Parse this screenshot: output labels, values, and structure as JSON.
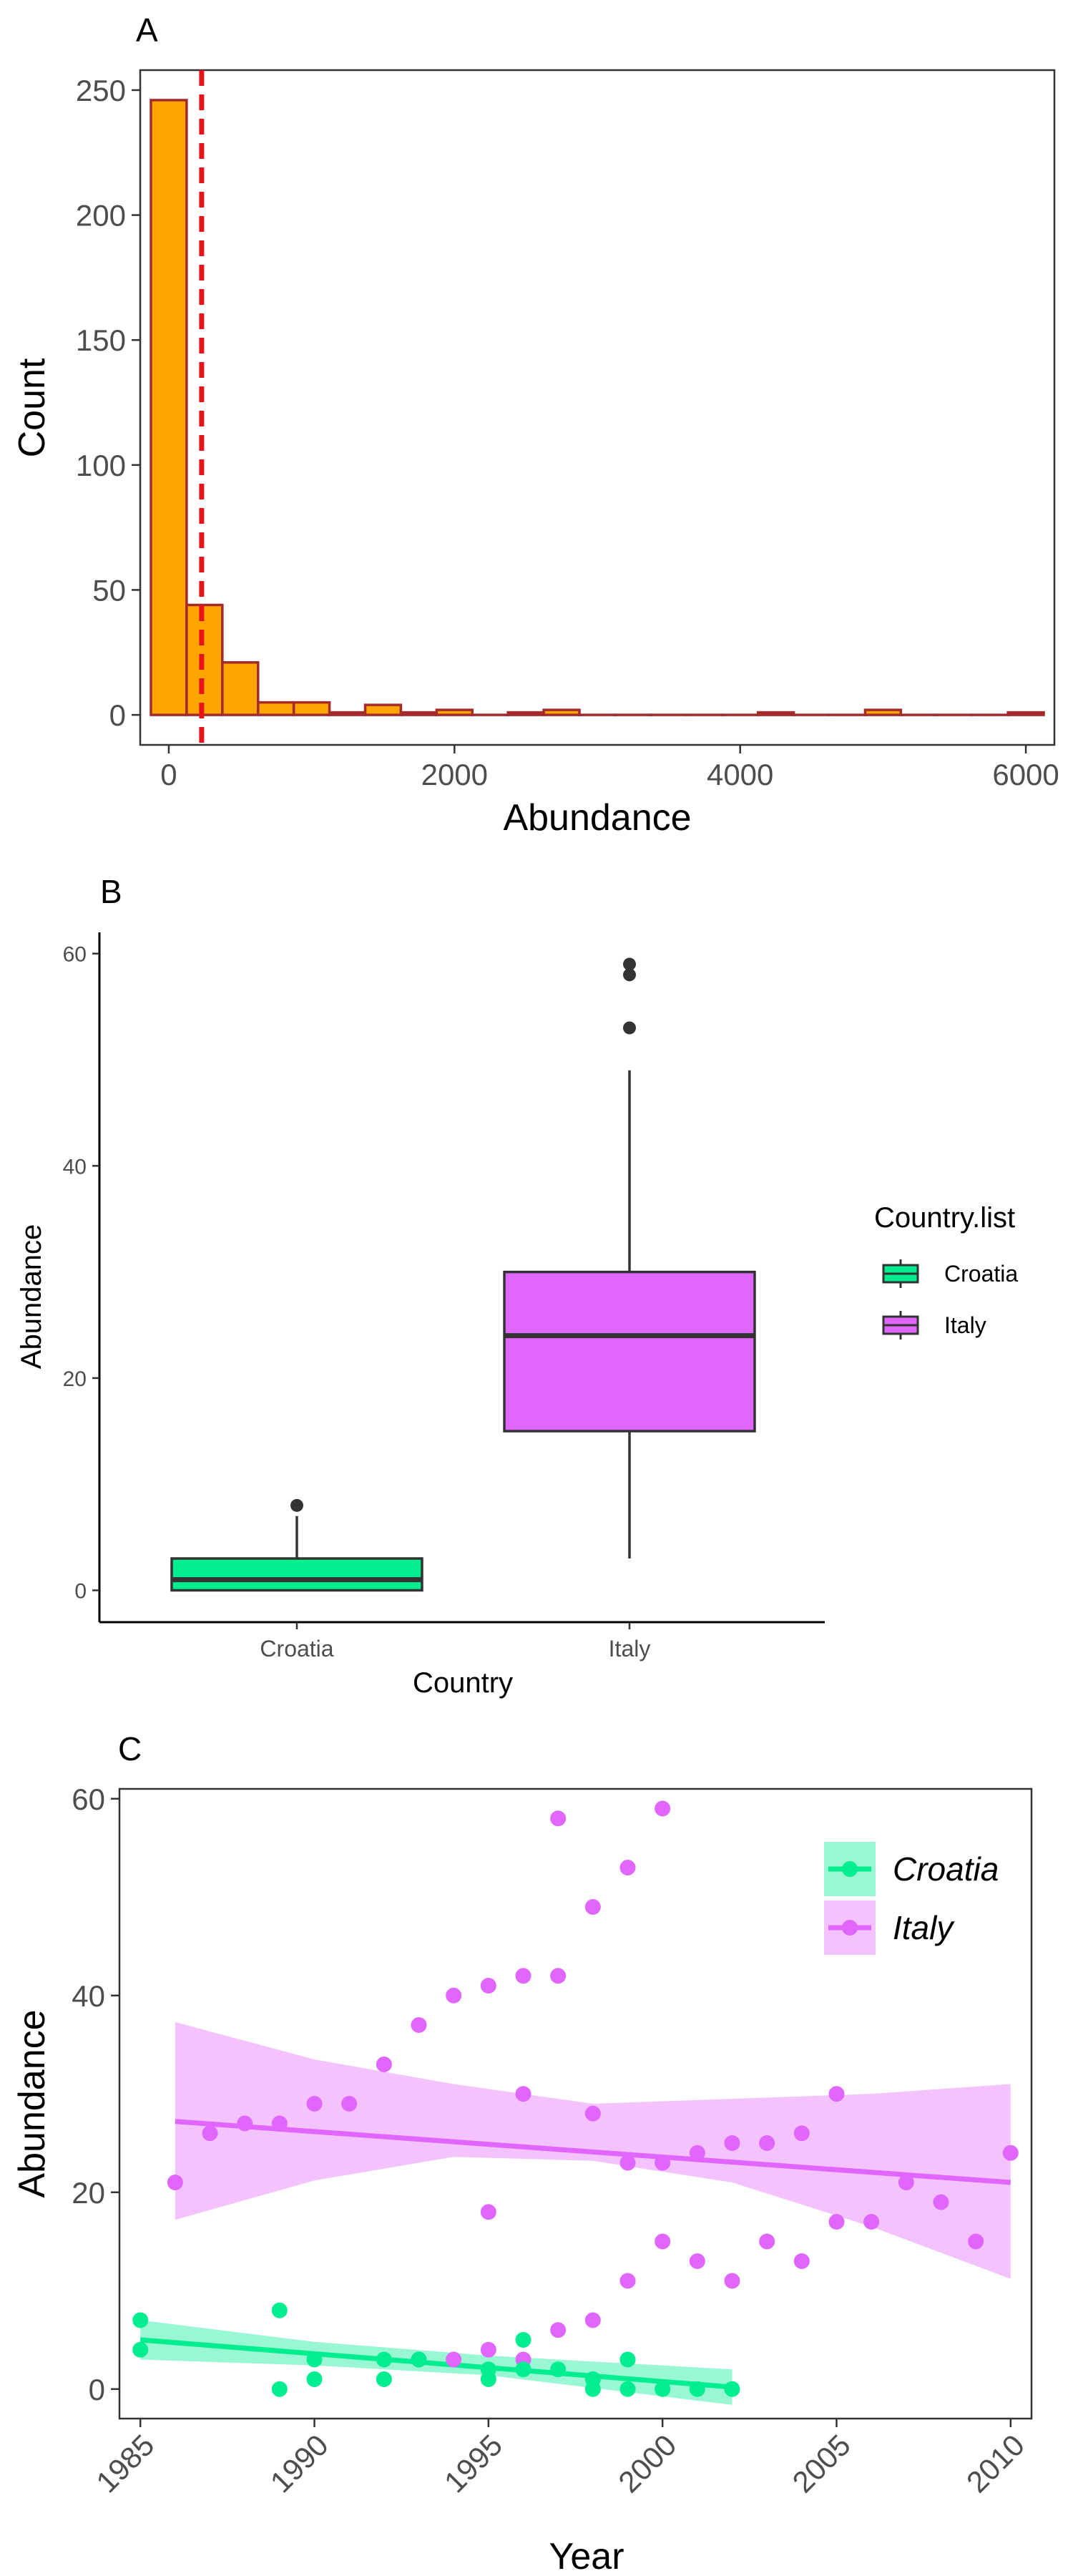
{
  "chart_data": [
    {
      "panel": "A",
      "type": "bar",
      "subtype": "histogram",
      "xlabel": "Abundance",
      "ylabel": "Count",
      "xlim": [
        -200,
        6200
      ],
      "ylim": [
        -12,
        258
      ],
      "x_ticks": [
        0,
        2000,
        4000,
        6000
      ],
      "y_ticks": [
        0,
        50,
        100,
        150,
        200,
        250
      ],
      "bin_width": 250,
      "bins": [
        {
          "x": 0,
          "count": 246
        },
        {
          "x": 250,
          "count": 44
        },
        {
          "x": 500,
          "count": 21
        },
        {
          "x": 750,
          "count": 5
        },
        {
          "x": 1000,
          "count": 5
        },
        {
          "x": 1250,
          "count": 1
        },
        {
          "x": 1500,
          "count": 4
        },
        {
          "x": 1750,
          "count": 1
        },
        {
          "x": 2000,
          "count": 2
        },
        {
          "x": 2250,
          "count": 0
        },
        {
          "x": 2500,
          "count": 1
        },
        {
          "x": 2750,
          "count": 2
        },
        {
          "x": 3000,
          "count": 0
        },
        {
          "x": 3250,
          "count": 0
        },
        {
          "x": 3500,
          "count": 0
        },
        {
          "x": 3750,
          "count": 0
        },
        {
          "x": 4000,
          "count": 0
        },
        {
          "x": 4250,
          "count": 1
        },
        {
          "x": 4500,
          "count": 0
        },
        {
          "x": 4750,
          "count": 0
        },
        {
          "x": 5000,
          "count": 2
        },
        {
          "x": 5250,
          "count": 0
        },
        {
          "x": 5500,
          "count": 0
        },
        {
          "x": 5750,
          "count": 0
        },
        {
          "x": 6000,
          "count": 1
        }
      ],
      "vline": 230,
      "colors": {
        "fill": "#FFA500",
        "stroke": "#A52A2A",
        "vline": "#E8141C"
      },
      "grid": false
    },
    {
      "panel": "B",
      "type": "box",
      "xlabel": "Country",
      "ylabel": "Abundance",
      "categories": [
        "Croatia",
        "Italy"
      ],
      "ylim": [
        -3,
        62
      ],
      "y_ticks": [
        0,
        20,
        40,
        60
      ],
      "boxes": [
        {
          "name": "Croatia",
          "min": 0,
          "q1": 0,
          "median": 1,
          "q3": 3,
          "max": 7,
          "outliers": [
            8
          ],
          "color": "#00EE90"
        },
        {
          "name": "Italy",
          "min": 3,
          "q1": 15,
          "median": 24,
          "q3": 30,
          "max": 49,
          "outliers": [
            53,
            58,
            59
          ],
          "color": "#E066FF"
        }
      ],
      "legend": {
        "title": "Country.list",
        "entries": [
          "Croatia",
          "Italy"
        ],
        "position": "right"
      },
      "grid": false
    },
    {
      "panel": "C",
      "type": "scatter",
      "xlabel": "Year",
      "ylabel": "Abundance",
      "xlim": [
        1984.4,
        2010.6
      ],
      "ylim": [
        -3,
        61
      ],
      "x_ticks": [
        1985,
        1990,
        1995,
        2000,
        2005,
        2010
      ],
      "y_ticks": [
        0,
        20,
        40,
        60
      ],
      "legend": {
        "entries": [
          "Croatia",
          "Italy"
        ],
        "position": "top-right"
      },
      "series": [
        {
          "name": "Croatia",
          "color": "#00EE90",
          "points": [
            [
              1985,
              7
            ],
            [
              1985,
              4
            ],
            [
              1989,
              8
            ],
            [
              1989,
              0
            ],
            [
              1990,
              3
            ],
            [
              1990,
              1
            ],
            [
              1992,
              3
            ],
            [
              1992,
              1
            ],
            [
              1993,
              3
            ],
            [
              1995,
              2
            ],
            [
              1995,
              1
            ],
            [
              1996,
              5
            ],
            [
              1996,
              2
            ],
            [
              1997,
              2
            ],
            [
              1998,
              1
            ],
            [
              1998,
              0
            ],
            [
              1999,
              3
            ],
            [
              1999,
              0
            ],
            [
              2000,
              0
            ],
            [
              2001,
              0
            ],
            [
              2002,
              0
            ]
          ],
          "fit": {
            "x": [
              1985,
              2002
            ],
            "y": [
              5.0,
              0.2
            ]
          },
          "band": {
            "x": [
              1985,
              1990,
              1995,
              2002
            ],
            "lower": [
              3.0,
              2.4,
              1.4,
              -1.6
            ],
            "upper": [
              7.0,
              4.8,
              3.4,
              2.0
            ]
          }
        },
        {
          "name": "Italy",
          "color": "#E066FF",
          "points": [
            [
              1986,
              21
            ],
            [
              1987,
              26
            ],
            [
              1988,
              27
            ],
            [
              1989,
              27
            ],
            [
              1990,
              29
            ],
            [
              1991,
              29
            ],
            [
              1992,
              33
            ],
            [
              1993,
              37
            ],
            [
              1993,
              3
            ],
            [
              1994,
              40
            ],
            [
              1994,
              3
            ],
            [
              1995,
              41
            ],
            [
              1995,
              18
            ],
            [
              1995,
              4
            ],
            [
              1996,
              42
            ],
            [
              1996,
              30
            ],
            [
              1996,
              3
            ],
            [
              1997,
              58
            ],
            [
              1997,
              42
            ],
            [
              1997,
              6
            ],
            [
              1998,
              49
            ],
            [
              1998,
              28
            ],
            [
              1998,
              7
            ],
            [
              1999,
              53
            ],
            [
              1999,
              23
            ],
            [
              1999,
              11
            ],
            [
              2000,
              59
            ],
            [
              2000,
              23
            ],
            [
              2000,
              15
            ],
            [
              2001,
              24
            ],
            [
              2001,
              13
            ],
            [
              2002,
              25
            ],
            [
              2002,
              11
            ],
            [
              2003,
              25
            ],
            [
              2003,
              15
            ],
            [
              2004,
              26
            ],
            [
              2004,
              13
            ],
            [
              2005,
              30
            ],
            [
              2005,
              17
            ],
            [
              2006,
              17
            ],
            [
              2007,
              21
            ],
            [
              2008,
              19
            ],
            [
              2009,
              15
            ],
            [
              2010,
              24
            ]
          ],
          "fit": {
            "x": [
              1986,
              2010
            ],
            "y": [
              27.2,
              21.0
            ]
          },
          "band": {
            "x": [
              1986,
              1990,
              1994,
              1998,
              2002,
              2006,
              2010
            ],
            "lower": [
              17.2,
              21.2,
              23.6,
              23.2,
              21.0,
              16.5,
              11.2
            ],
            "upper": [
              37.3,
              33.5,
              31.0,
              29.0,
              29.5,
              30.0,
              31.0
            ]
          }
        }
      ],
      "grid": false
    }
  ]
}
